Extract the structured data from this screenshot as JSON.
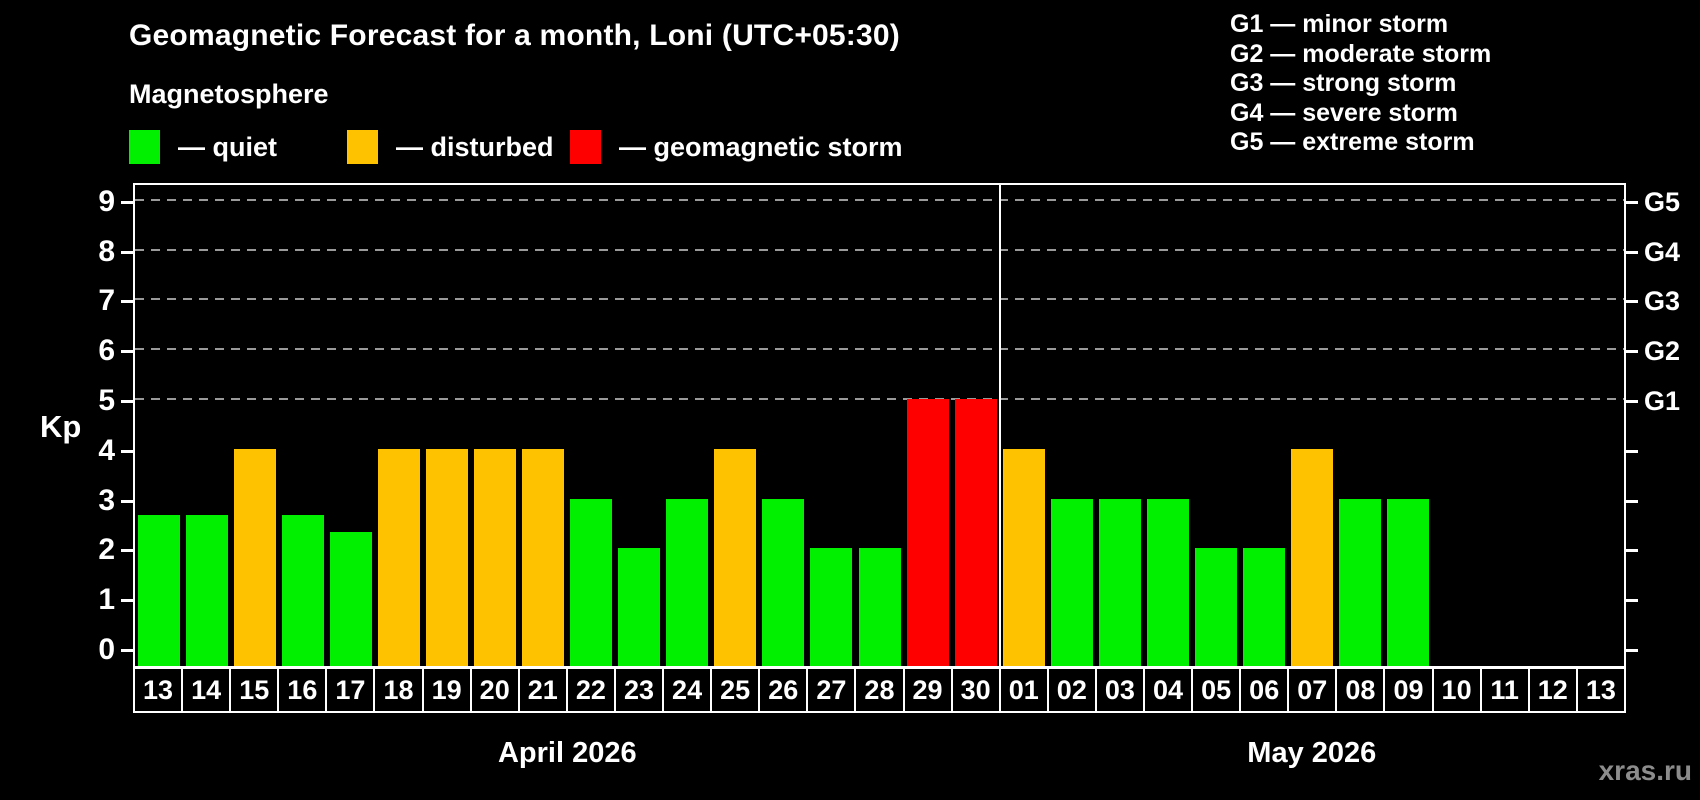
{
  "title": "Geomagnetic Forecast for a month, Loni (UTC+05:30)",
  "subtitle": "Magnetosphere",
  "legend": {
    "items": [
      {
        "key": "quiet",
        "label": "— quiet"
      },
      {
        "key": "disturbed",
        "label": "— disturbed"
      },
      {
        "key": "storm",
        "label": "— geomagnetic storm"
      }
    ]
  },
  "g_legend": [
    "G1 — minor storm",
    "G2 — moderate storm",
    "G3 — strong storm",
    "G4 — severe storm",
    "G5 — extreme storm"
  ],
  "watermark": "xras.ru",
  "colors": {
    "background": "#000000",
    "quiet": "#00f000",
    "disturbed": "#ffc200",
    "storm": "#ff0000",
    "grid": "#9a9a9a",
    "axis": "#ffffff",
    "watermark": "#8c8c8c"
  },
  "chart_data": {
    "type": "bar",
    "title": "Geomagnetic Forecast for a month, Loni (UTC+05:30)",
    "xlabel": "",
    "ylabel": "Kp",
    "ylim": [
      0,
      9
    ],
    "y_ticks": [
      0,
      1,
      2,
      3,
      4,
      5,
      6,
      7,
      8,
      9
    ],
    "gridlines_at": [
      5,
      6,
      7,
      8,
      9
    ],
    "grid_style": "dashed",
    "g_scale": {
      "5": "G1",
      "6": "G2",
      "7": "G3",
      "8": "G4",
      "9": "G5"
    },
    "legend_position": "top",
    "categories": [
      "13",
      "14",
      "15",
      "16",
      "17",
      "18",
      "19",
      "20",
      "21",
      "22",
      "23",
      "24",
      "25",
      "26",
      "27",
      "28",
      "29",
      "30",
      "01",
      "02",
      "03",
      "04",
      "05",
      "06",
      "07",
      "08",
      "09",
      "10",
      "11",
      "12",
      "13"
    ],
    "values": [
      2.67,
      2.67,
      4,
      2.67,
      2.33,
      4,
      4,
      4,
      4,
      3,
      2,
      3,
      4,
      3,
      2,
      2,
      5,
      5,
      4,
      3,
      3,
      3,
      2,
      2,
      4,
      3,
      3,
      null,
      null,
      null,
      null
    ],
    "statuses": [
      "quiet",
      "quiet",
      "disturbed",
      "quiet",
      "quiet",
      "disturbed",
      "disturbed",
      "disturbed",
      "disturbed",
      "quiet",
      "quiet",
      "quiet",
      "disturbed",
      "quiet",
      "quiet",
      "quiet",
      "storm",
      "storm",
      "disturbed",
      "quiet",
      "quiet",
      "quiet",
      "quiet",
      "quiet",
      "disturbed",
      "quiet",
      "quiet",
      null,
      null,
      null,
      null
    ],
    "months": [
      {
        "label": "April 2026",
        "days": 18
      },
      {
        "label": "May 2026",
        "days": 13
      }
    ]
  }
}
